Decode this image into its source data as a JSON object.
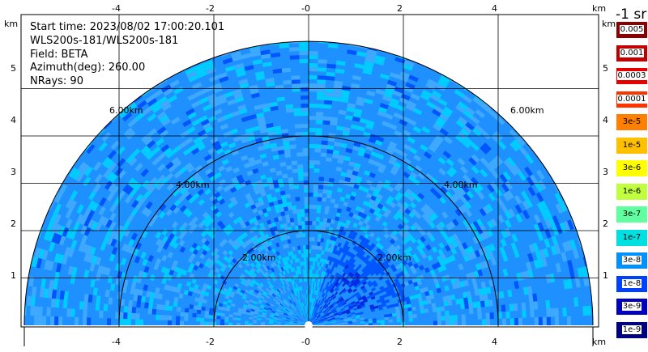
{
  "info": {
    "start_time": "Start time: 2023/08/02 17:00:20.101",
    "instrument": "WLS200s-181/WLS200s-181",
    "field": "Field: BETA",
    "azimuth": "Azimuth(deg): 260.00",
    "nrays": "NRays: 90"
  },
  "axes": {
    "x_unit": "km",
    "y_unit": "km",
    "x_ticks": [
      "-4",
      "-2",
      "-0",
      "2",
      "4"
    ],
    "y_ticks": [
      "5",
      "4",
      "3",
      "2",
      "1"
    ],
    "xlim": [
      -5.9,
      6.0
    ],
    "ylim": [
      0,
      5.3
    ]
  },
  "rings": {
    "radii_km": [
      2,
      4,
      6
    ],
    "labels": [
      "2.00km",
      "4.00km",
      "6.00km"
    ]
  },
  "colorbar": {
    "title": "-1 sr",
    "labels": [
      "0.005",
      "0.001",
      "0.0003",
      "0.0001",
      "3e-5",
      "1e-5",
      "3e-6",
      "1e-6",
      "3e-7",
      "1e-7",
      "3e-8",
      "1e-8",
      "3e-9",
      "1e-9"
    ],
    "colors": [
      "#8b0000",
      "#c00000",
      "#e60000",
      "#ff3300",
      "#ff8000",
      "#ffc000",
      "#ffff00",
      "#c0ff40",
      "#60ffa0",
      "#00e0e0",
      "#0090ff",
      "#0040ff",
      "#0000c0",
      "#000080"
    ]
  },
  "palette": {
    "background_field": "#1e90ff",
    "cyan": "#00ccff",
    "light_blue": "#3fa9ff",
    "deep_blue": "#0055ff",
    "dark_blue": "#0028e0"
  }
}
